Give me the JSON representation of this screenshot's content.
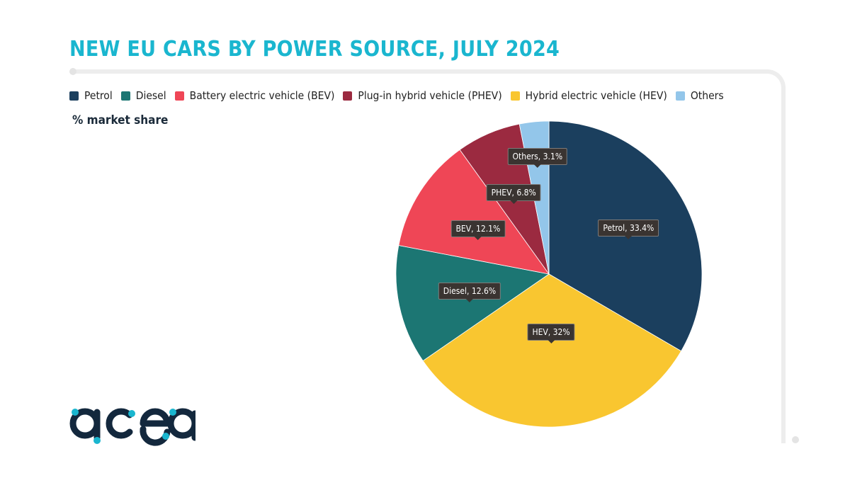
{
  "title": "NEW EU CARS BY POWER SOURCE, JULY 2024",
  "subtitle": "% market share",
  "logo_text": "acea",
  "chart_data": {
    "type": "pie",
    "legend_position": "top-left",
    "slices": [
      {
        "name": "Petrol",
        "legend": "Petrol",
        "label": "Petrol, 33.4%",
        "value": 33.4,
        "color": "#1b3f5e"
      },
      {
        "name": "HEV",
        "legend": "Hybrid electric vehicle (HEV)",
        "label": "HEV, 32%",
        "value": 32,
        "color": "#f9c630"
      },
      {
        "name": "Diesel",
        "legend": "Diesel",
        "label": "Diesel, 12.6%",
        "value": 12.6,
        "color": "#1c7673"
      },
      {
        "name": "BEV",
        "legend": "Battery electric vehicle (BEV)",
        "label": "BEV, 12.1%",
        "value": 12.1,
        "color": "#ef4656"
      },
      {
        "name": "PHEV",
        "legend": "Plug-in hybrid vehicle (PHEV)",
        "label": "PHEV, 6.8%",
        "value": 6.8,
        "color": "#9b2a40"
      },
      {
        "name": "Others",
        "legend": "Others",
        "label": "Others, 3.1%",
        "value": 3.1,
        "color": "#93c6ea"
      }
    ],
    "legend_order": [
      "Petrol",
      "Diesel",
      "BEV",
      "PHEV",
      "HEV",
      "Others"
    ]
  }
}
